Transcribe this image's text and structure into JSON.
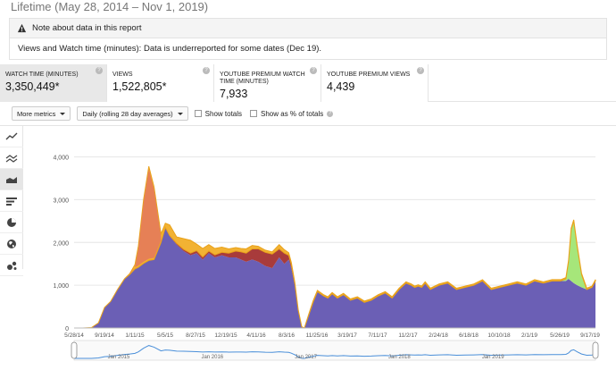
{
  "report": {
    "title": "Lifetime (May 28, 2014 – Nov 1, 2019)"
  },
  "note": {
    "heading": "Note about data in this report",
    "body": "Views and Watch time (minutes): Data is underreported for some dates (Dec 19)."
  },
  "metrics": [
    {
      "label": "WATCH TIME (MINUTES)",
      "value": "3,350,449*",
      "active": true
    },
    {
      "label": "VIEWS",
      "value": "1,522,805*",
      "active": false
    },
    {
      "label": "YOUTUBE PREMIUM WATCH TIME (MINUTES)",
      "value": "7,933",
      "active": false
    },
    {
      "label": "YOUTUBE PREMIUM VIEWS",
      "value": "4,439",
      "active": false
    }
  ],
  "help_glyph": "?",
  "controls": {
    "more_metrics": "More metrics",
    "granularity": "Daily (rolling 28 day averages)",
    "show_totals": "Show totals",
    "show_percent": "Show as % of totals"
  },
  "sidebar": {
    "icons": [
      "line-chart-icon",
      "multi-line-chart-icon",
      "stacked-area-chart-icon",
      "bar-chart-icon",
      "pie-chart-icon",
      "globe-map-icon",
      "bubble-chart-icon"
    ],
    "active_index": 2
  },
  "colors": {
    "purple": "#6b5fb5",
    "red": "#a83b3b",
    "orange": "#f2b233",
    "salmon": "#e47a5a",
    "green": "#a6e67a",
    "navigator": "#4a8fd9"
  },
  "chart_data": {
    "type": "area",
    "stacked": true,
    "y_ticks": [
      "0",
      "1,000",
      "2,000",
      "3,000",
      "4,000"
    ],
    "ylim": [
      0,
      4200
    ],
    "x_ticks": [
      "5/28/14",
      "9/19/14",
      "1/11/15",
      "5/5/15",
      "8/27/15",
      "12/19/15",
      "4/11/16",
      "8/3/16",
      "11/25/16",
      "3/19/17",
      "7/11/17",
      "11/2/17",
      "2/24/18",
      "6/18/18",
      "10/10/18",
      "2/1/19",
      "5/26/19",
      "9/17/19"
    ],
    "navigator_labels": [
      "Jan 2015",
      "Jan 2016",
      "Jan 2017",
      "Jan 2018",
      "Jan 2019"
    ],
    "x": [
      0,
      10,
      20,
      28,
      35,
      42,
      50,
      58,
      64,
      70,
      74,
      80,
      86,
      92,
      100,
      105,
      110,
      118,
      126,
      134,
      141,
      148,
      155,
      162,
      170,
      178,
      186,
      192,
      198,
      205,
      212,
      220,
      228,
      236,
      242,
      247,
      250,
      254,
      258,
      262,
      265,
      270,
      275,
      280,
      287,
      292,
      297,
      303,
      310,
      318,
      326,
      334,
      342,
      350,
      358,
      366,
      374,
      382,
      388,
      392,
      396,
      400,
      404,
      410,
      420,
      430,
      440,
      450,
      460,
      470,
      480,
      490,
      500,
      510,
      520,
      530,
      540,
      550,
      560,
      566,
      569,
      572,
      575,
      579,
      584,
      590,
      596,
      600
    ],
    "series": [
      {
        "name": "",
        "values": [
          0,
          0,
          10,
          120,
          480,
          620,
          900,
          1150,
          1250,
          1380,
          1420,
          1510,
          1580,
          1600,
          2000,
          2350,
          2150,
          1950,
          1800,
          1700,
          1750,
          1600,
          1750,
          1650,
          1700,
          1650,
          1650,
          1600,
          1550,
          1600,
          1550,
          1450,
          1400,
          1650,
          1500,
          1600,
          1400,
          1000,
          400,
          30,
          0,
          300,
          600,
          850,
          750,
          700,
          800,
          700,
          780,
          650,
          700,
          600,
          650,
          750,
          820,
          700,
          900,
          1050,
          1000,
          950,
          980,
          950,
          1050,
          900,
          1000,
          1050,
          900,
          950,
          1000,
          1100,
          900,
          950,
          1000,
          1050,
          1000,
          1100,
          1050,
          1100,
          1100,
          1100,
          1150,
          1100,
          1050,
          1000,
          950,
          900,
          950,
          1100
        ]
      },
      {
        "name": "",
        "values": [
          0,
          0,
          0,
          0,
          0,
          0,
          0,
          0,
          0,
          0,
          0,
          0,
          0,
          0,
          0,
          0,
          10,
          30,
          40,
          50,
          60,
          60,
          50,
          60,
          70,
          100,
          150,
          180,
          200,
          250,
          300,
          320,
          330,
          200,
          250,
          100,
          80,
          40,
          10,
          0,
          0,
          0,
          0,
          0,
          0,
          0,
          0,
          0,
          0,
          0,
          0,
          0,
          0,
          0,
          0,
          0,
          0,
          0,
          0,
          0,
          0,
          0,
          0,
          0,
          0,
          0,
          0,
          0,
          0,
          0,
          0,
          0,
          0,
          0,
          0,
          0,
          0,
          0,
          0,
          0,
          0,
          0,
          0,
          0,
          0,
          0,
          0,
          0
        ]
      },
      {
        "name": "",
        "values": [
          0,
          0,
          0,
          0,
          0,
          0,
          0,
          0,
          0,
          0,
          0,
          0,
          0,
          0,
          0,
          0,
          0,
          0,
          0,
          0,
          0,
          0,
          0,
          0,
          0,
          0,
          0,
          0,
          0,
          0,
          0,
          0,
          0,
          0,
          0,
          0,
          0,
          0,
          0,
          0,
          0,
          0,
          0,
          0,
          0,
          0,
          0,
          0,
          0,
          0,
          0,
          0,
          0,
          0,
          0,
          0,
          0,
          0,
          0,
          0,
          0,
          0,
          0,
          0,
          0,
          0,
          0,
          0,
          0,
          0,
          0,
          0,
          0,
          0,
          0,
          0,
          0,
          0,
          0,
          50,
          400,
          1200,
          1450,
          900,
          300,
          0,
          0,
          0
        ]
      },
      {
        "name": "",
        "values": [
          0,
          0,
          0,
          0,
          0,
          0,
          0,
          0,
          20,
          100,
          500,
          1500,
          2200,
          1700,
          200,
          100,
          250,
          150,
          250,
          300,
          150,
          200,
          150,
          150,
          120,
          100,
          80,
          80,
          100,
          80,
          60,
          50,
          50,
          100,
          80,
          60,
          50,
          30,
          10,
          0,
          0,
          20,
          30,
          30,
          30,
          30,
          30,
          30,
          30,
          30,
          30,
          30,
          30,
          30,
          30,
          30,
          30,
          30,
          30,
          30,
          30,
          30,
          30,
          30,
          30,
          30,
          30,
          30,
          30,
          30,
          30,
          30,
          30,
          30,
          30,
          30,
          30,
          30,
          30,
          30,
          30,
          30,
          30,
          30,
          30,
          30,
          30,
          30
        ]
      }
    ],
    "series_colors": [
      "#6b5fb5",
      "#a83b3b",
      "#a6e67a",
      "#f2b233"
    ],
    "spike_overlay": {
      "start_index": 8,
      "end_index": 14,
      "color": "#e47a5a"
    }
  }
}
